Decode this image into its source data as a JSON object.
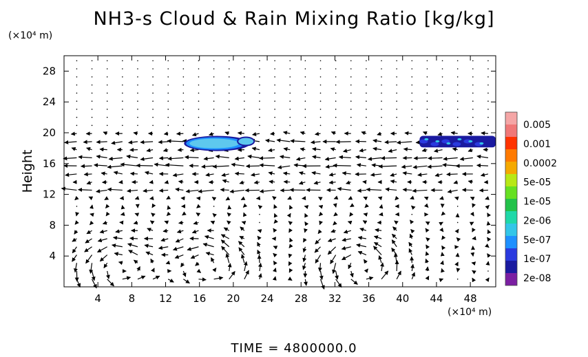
{
  "title": "NH3-s Cloud & Rain Mixing Ratio [kg/kg]",
  "y_unit": "(×10⁴ m)",
  "x_unit": "(×10⁴ m)",
  "time_label": "TIME  =  4800000.0",
  "colors": {
    "colorbar": [
      "#7b1fa2",
      "#1a1aa0",
      "#2a3adf",
      "#1e90ff",
      "#33c6e8",
      "#1fd8a8",
      "#22c24a",
      "#66e022",
      "#b8e816",
      "#f5a900",
      "#ff7a00",
      "#ff3300",
      "#f07878",
      "#f5a6a6"
    ]
  },
  "chart_data": {
    "type": "quiver+contour",
    "title": "NH3-s Cloud & Rain Mixing Ratio [kg/kg]",
    "xlabel": "",
    "ylabel": "Height",
    "xlim": [
      0,
      51
    ],
    "ylim": [
      0,
      30
    ],
    "x_ticks": [
      4,
      8,
      12,
      16,
      20,
      24,
      28,
      32,
      36,
      40,
      44,
      48
    ],
    "y_ticks": [
      4,
      8,
      12,
      16,
      20,
      24,
      28
    ],
    "colorbar_labels": [
      "0.005",
      "0.001",
      "0.0002",
      "5e-05",
      "1e-05",
      "2e-06",
      "5e-07",
      "1e-07",
      "2e-08"
    ],
    "cloud_regions": [
      {
        "x_range": [
          14.5,
          22.3
        ],
        "y_range": [
          17.8,
          19.6
        ],
        "level": "5e-07"
      },
      {
        "x_range": [
          42,
          51
        ],
        "y_range": [
          18.1,
          19.6
        ],
        "level": "1e-07"
      }
    ]
  }
}
